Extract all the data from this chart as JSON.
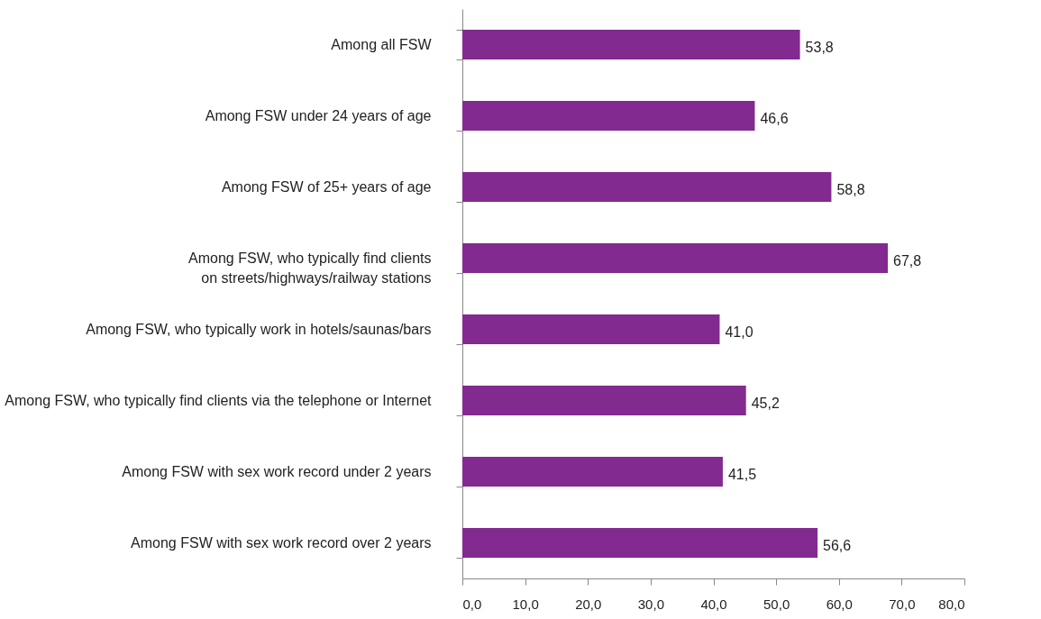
{
  "chart_data": {
    "type": "bar",
    "orientation": "horizontal",
    "categories": [
      "Among all FSW",
      "Among FSW under 24 years of age",
      "Among FSW of 25+ years of age",
      "Among FSW, who typically find clients \non streets/highways/railway stations",
      "Among FSW, who typically work in hotels/saunas/bars",
      "Among FSW, who typically find clients via the telephone or Internet",
      "Among FSW with sex work record under 2 years",
      "Among FSW with sex work record over 2 years"
    ],
    "values": [
      53.8,
      46.6,
      58.8,
      67.8,
      41.0,
      45.2,
      41.5,
      56.6
    ],
    "value_labels": [
      "53,8",
      "46,6",
      "58,8",
      "67,8",
      "41,0",
      "45,2",
      "41,5",
      "56,6"
    ],
    "color": "#822a8f",
    "xlim": [
      0,
      80
    ],
    "xticks": [
      {
        "value": 0,
        "label": "0,0"
      },
      {
        "value": 10,
        "label": "10,0"
      },
      {
        "value": 20,
        "label": "20,0"
      },
      {
        "value": 30,
        "label": "30,0"
      },
      {
        "value": 40,
        "label": "40,0"
      },
      {
        "value": 50,
        "label": "50,0"
      },
      {
        "value": 60,
        "label": "60,0"
      },
      {
        "value": 70,
        "label": "70,0"
      },
      {
        "value": 80,
        "label": "80,0"
      }
    ],
    "grid": false
  }
}
